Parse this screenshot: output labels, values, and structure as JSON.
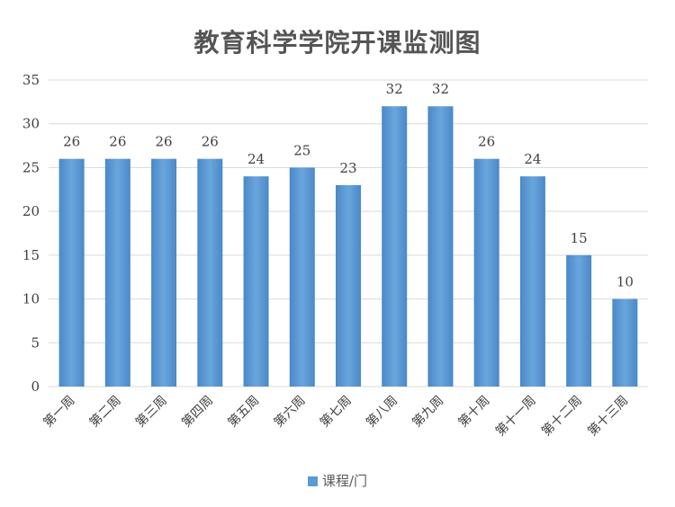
{
  "chart_data": {
    "type": "bar",
    "title": "教育科学学院开课监测图",
    "categories": [
      "第一周",
      "第二周",
      "第三周",
      "第四周",
      "第五周",
      "第六周",
      "第七周",
      "第八周",
      "第九周",
      "第十周",
      "第十一周",
      "第十二周",
      "第十三周"
    ],
    "series": [
      {
        "name": "课程/门",
        "values": [
          26,
          26,
          26,
          26,
          24,
          25,
          23,
          32,
          32,
          26,
          24,
          15,
          10
        ]
      }
    ],
    "ylim": [
      0,
      35
    ],
    "yticks": [
      0,
      5,
      10,
      15,
      20,
      25,
      30,
      35
    ],
    "grid": true,
    "legend": "bottom",
    "colors": {
      "bar": "#5b9bd5",
      "grid": "#d9d9d9",
      "text": "#404040"
    }
  }
}
